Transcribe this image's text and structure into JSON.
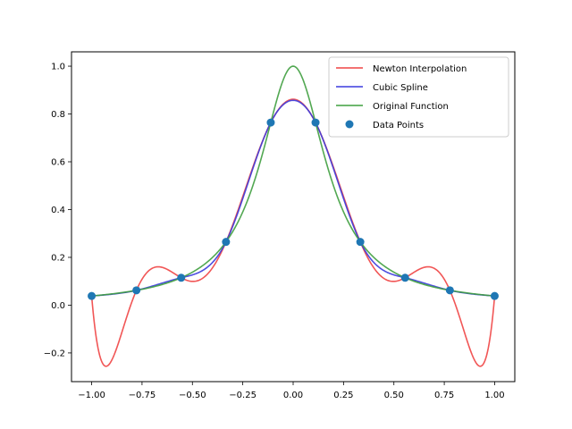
{
  "chart_data": {
    "type": "line",
    "title": "",
    "xlabel": "",
    "ylabel": "",
    "xlim": [
      -1.1,
      1.1
    ],
    "ylim": [
      -0.32,
      1.06
    ],
    "grid": false,
    "legend_position": "top-right",
    "x_ticks": [
      -1.0,
      -0.75,
      -0.5,
      -0.25,
      0.0,
      0.25,
      0.5,
      0.75,
      1.0
    ],
    "x_tick_labels": [
      "−1.00",
      "−0.75",
      "−0.50",
      "−0.25",
      "0.00",
      "0.25",
      "0.50",
      "0.75",
      "1.00"
    ],
    "y_ticks": [
      -0.2,
      0.0,
      0.2,
      0.4,
      0.6,
      0.8,
      1.0
    ],
    "y_tick_labels": [
      "−0.2",
      "0.0",
      "0.2",
      "0.4",
      "0.6",
      "0.8",
      "1.0"
    ],
    "series": [
      {
        "name": "Newton Interpolation",
        "kind": "line",
        "color": "#ef4444",
        "function": "newton_interpolant_of_runge"
      },
      {
        "name": "Cubic Spline",
        "kind": "line",
        "color": "#3b3bdd",
        "function": "natural_cubic_spline_of_runge"
      },
      {
        "name": "Original Function",
        "kind": "line",
        "color": "#3f9f3f",
        "function": "1/(1+25x^2)"
      },
      {
        "name": "Data Points",
        "kind": "scatter",
        "color": "#1f77b4",
        "x": [
          -1.0,
          -0.7778,
          -0.5556,
          -0.3333,
          -0.1111,
          0.1111,
          0.3333,
          0.5556,
          0.7778,
          1.0
        ],
        "y": [
          0.0385,
          0.062,
          0.1147,
          0.2647,
          0.7642,
          0.7642,
          0.2647,
          0.1147,
          0.062,
          0.0385
        ]
      }
    ]
  }
}
